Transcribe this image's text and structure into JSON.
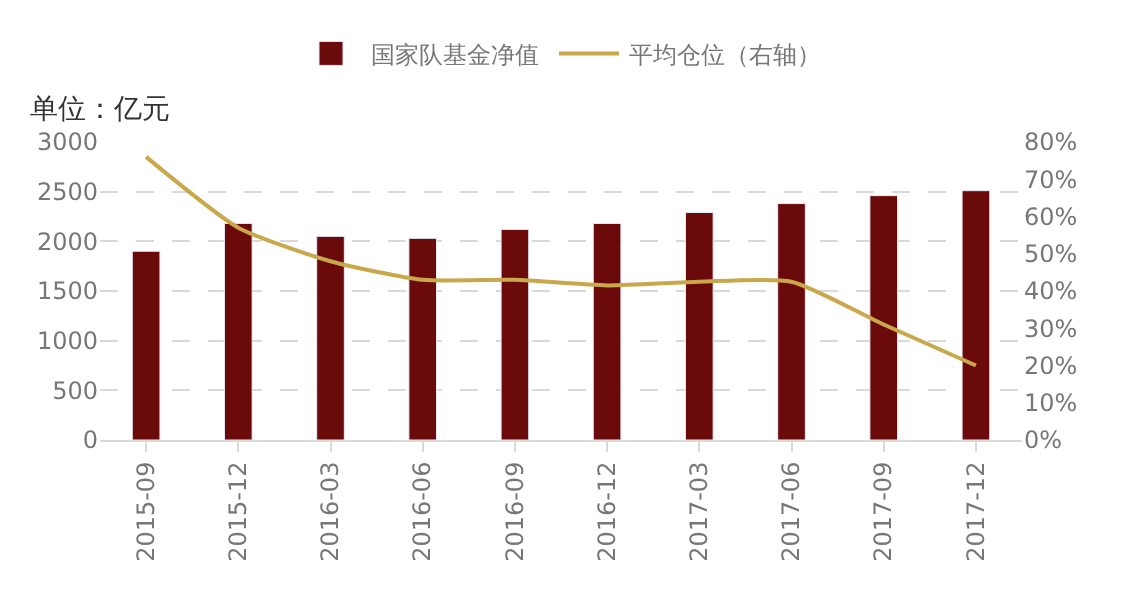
{
  "chart_data": {
    "type": "bar",
    "categories": [
      "2015-09",
      "2015-12",
      "2016-03",
      "2016-06",
      "2016-09",
      "2016-12",
      "2017-03",
      "2017-06",
      "2017-09",
      "2017-12"
    ],
    "series": [
      {
        "name": "国家队基金净值",
        "color": "#6b0a0a",
        "values": [
          1900,
          2180,
          2050,
          2030,
          2120,
          2180,
          2290,
          2380,
          2460,
          2510
        ]
      },
      {
        "name": "平均仓位（右轴）",
        "type": "line",
        "axis": "y2",
        "color": "#c8a84b",
        "values": [
          76,
          57,
          48,
          43,
          43,
          41.5,
          42.5,
          42.5,
          31,
          20
        ]
      }
    ],
    "ylim": [
      0,
      3000
    ],
    "yticks": [
      0,
      500,
      1000,
      1500,
      2000,
      2500,
      3000
    ],
    "y2lim": [
      0,
      80
    ],
    "y2ticks": [
      {
        "value": 0,
        "label": "0%"
      },
      {
        "value": 10,
        "label": "10%"
      },
      {
        "value": 20,
        "label": "20%"
      },
      {
        "value": 30,
        "label": "30%"
      },
      {
        "value": 40,
        "label": "40%"
      },
      {
        "value": 50,
        "label": "50%"
      },
      {
        "value": 60,
        "label": "60%"
      },
      {
        "value": 70,
        "label": "70%"
      },
      {
        "value": 80,
        "label": "80%"
      }
    ],
    "annotations": [
      "单位：亿元"
    ],
    "grid": "y",
    "legend": "top",
    "marker": "none",
    "line_style": "solid"
  }
}
